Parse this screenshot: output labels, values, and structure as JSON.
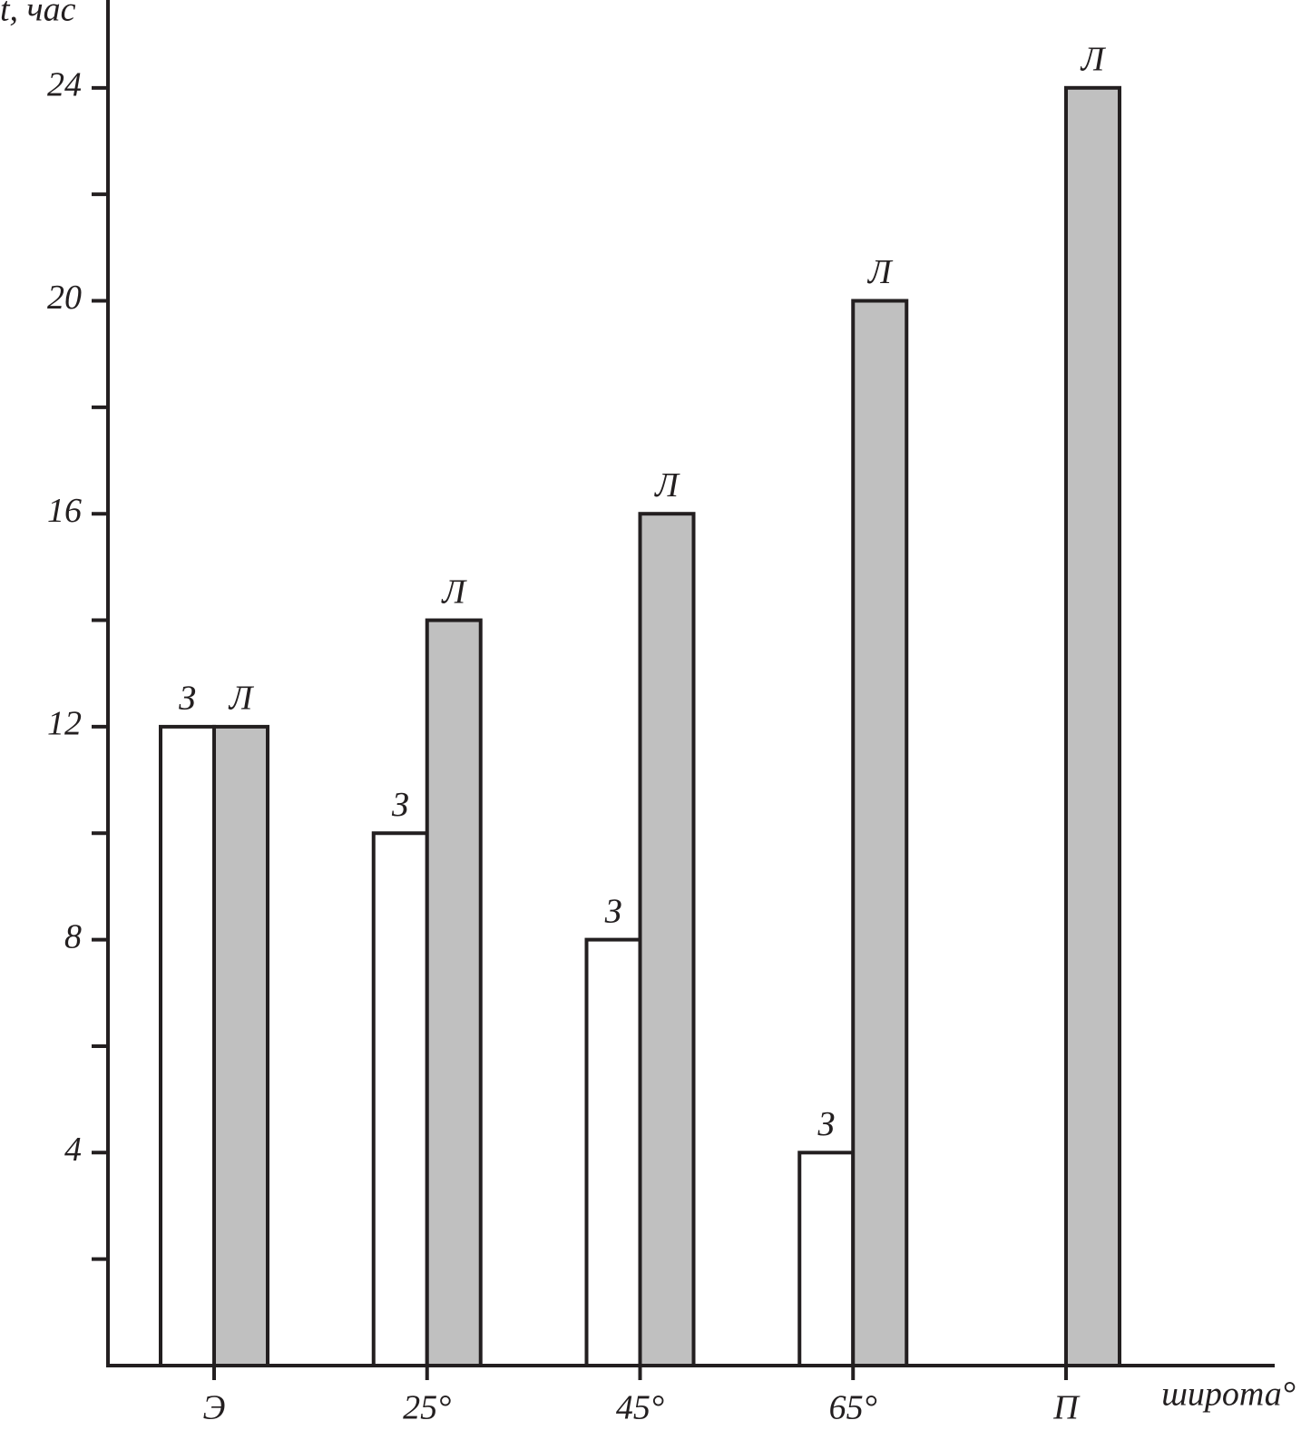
{
  "chart_data": {
    "type": "bar",
    "y_label": "t, час",
    "x_label": "широта°",
    "categories": [
      "Э",
      "25°",
      "45°",
      "65°",
      "П"
    ],
    "series": [
      {
        "name": "З",
        "color": "#ffffff",
        "values": [
          12,
          10,
          8,
          4,
          null
        ]
      },
      {
        "name": "Л",
        "color": "#c0c0c0",
        "values": [
          12,
          14,
          16,
          20,
          24
        ]
      }
    ],
    "ylim": [
      0,
      25.65
    ],
    "yticks": [
      4,
      8,
      12,
      16,
      20,
      24
    ],
    "minor_yticks": [
      2,
      6,
      10,
      14,
      18,
      22
    ]
  }
}
